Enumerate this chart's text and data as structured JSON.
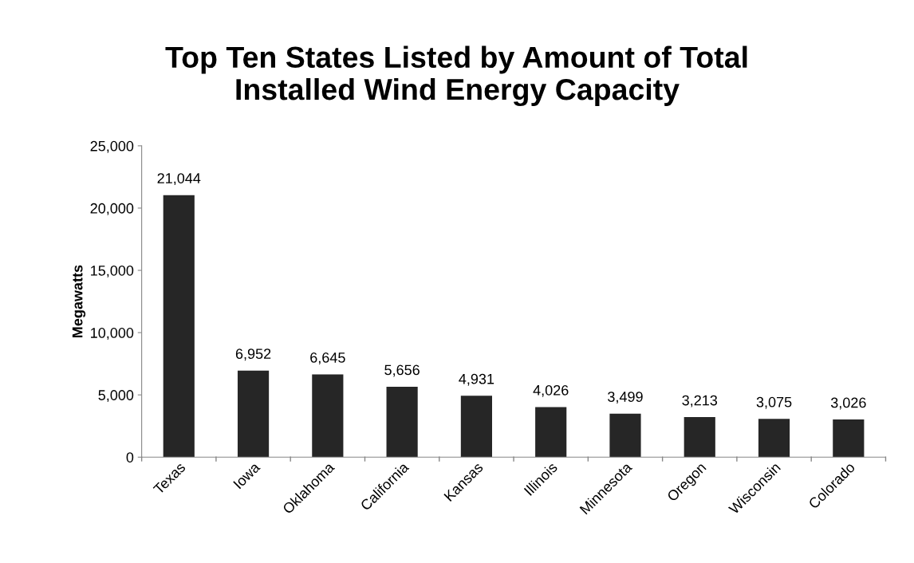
{
  "chart_data": {
    "type": "bar",
    "title": "Top Ten States Listed by Amount of Total Installed Wind Energy Capacity",
    "ylabel": "Megawatts",
    "categories": [
      "Texas",
      "Iowa",
      "Oklahoma",
      "California",
      "Kansas",
      "Illinois",
      "Minnesota",
      "Oregon",
      "Wisconsin",
      "Colorado"
    ],
    "values": [
      21044,
      6952,
      6645,
      5656,
      4931,
      4026,
      3499,
      3213,
      3075,
      3026
    ],
    "color": "#262626",
    "ylim": [
      0,
      25000
    ],
    "yticks": [
      {
        "value": 0,
        "label": "0"
      },
      {
        "value": 5000,
        "label": "5,000"
      },
      {
        "value": 10000,
        "label": "10,000"
      },
      {
        "value": 15000,
        "label": "15,000"
      },
      {
        "value": 20000,
        "label": "20,000"
      },
      {
        "value": 25000,
        "label": "25,000"
      }
    ],
    "value_labels": [
      "21,044",
      "6,952",
      "6,645",
      "5,656",
      "4,931",
      "4,026",
      "3,499",
      "3,213",
      "3,075",
      "3,026"
    ],
    "grid": false,
    "legend": false
  }
}
